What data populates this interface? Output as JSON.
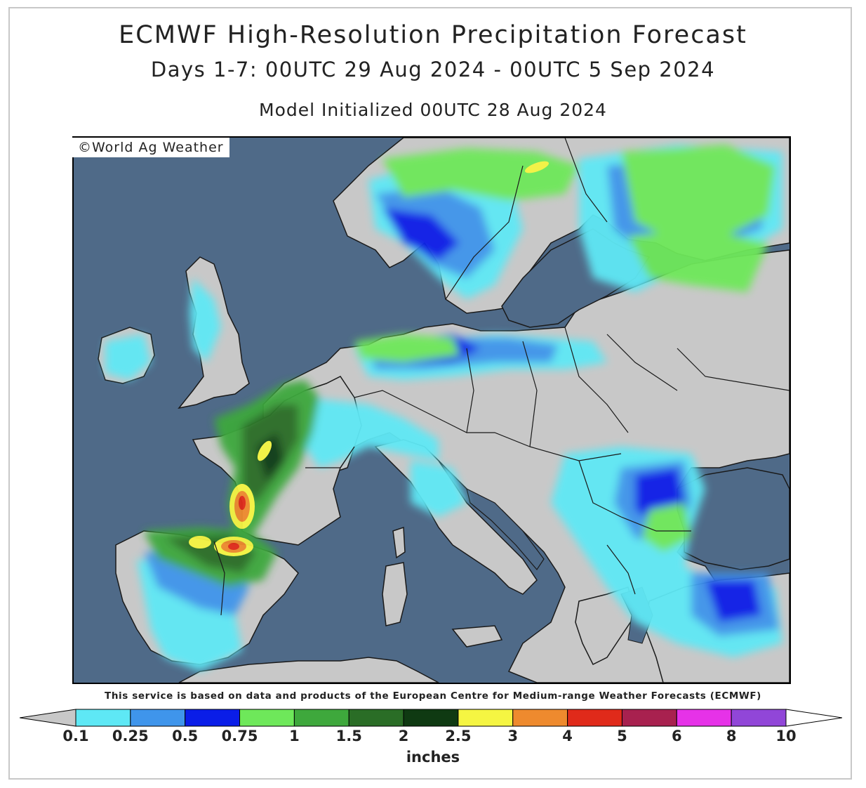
{
  "title": "ECMWF High-Resolution Precipitation Forecast",
  "subtitle": "Days 1-7: 00UTC 29 Aug 2024 - 00UTC 5 Sep 2024",
  "init": "Model Initialized 00UTC 28 Aug 2024",
  "copyright": "©World Ag Weather",
  "attribution": "This service is based on data and products of the European Centre for Medium-range Weather Forecasts (ECMWF)",
  "units": "inches",
  "colors": {
    "sea": "#4f6a88",
    "land": "#c8c8c8",
    "border": "#1a1a1a"
  },
  "legend": {
    "under_color": "#c8c8c8",
    "over_color": "#ffffff",
    "colors": [
      "#5ee8f5",
      "#3f95eb",
      "#0a1de8",
      "#6ee85a",
      "#3ea83c",
      "#2a6d26",
      "#0f3a12",
      "#f5f542",
      "#ee8a2e",
      "#e02a1a",
      "#a8214f",
      "#e632e8",
      "#9146d8"
    ],
    "ticks": [
      "0.1",
      "0.25",
      "0.5",
      "0.75",
      "1",
      "1.5",
      "2",
      "2.5",
      "3",
      "4",
      "5",
      "6",
      "8",
      "10"
    ]
  }
}
